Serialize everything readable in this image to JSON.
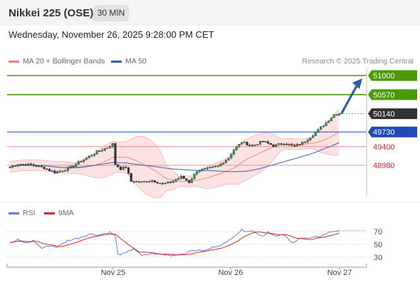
{
  "header": {
    "title": "Nikkei 225 (OSE)",
    "timeframe": "30 MIN",
    "datetime": "Wednesday, November 26, 2025 9:28:00 PM CET"
  },
  "legend": {
    "main": [
      {
        "label": "MA 20 + Bollinger Bands",
        "color": "#f08080"
      },
      {
        "label": "MA 50",
        "color": "#3b5fa6"
      }
    ],
    "credit": "Research © 2025 Trading Central",
    "rsi": [
      {
        "label": "RSI",
        "color": "#5b7fd8"
      },
      {
        "label": "9MA",
        "color": "#e02020"
      }
    ]
  },
  "chart_data": [
    {
      "type": "candlestick",
      "title": "Nikkei 225 (OSE)",
      "y_range": [
        48230,
        51150
      ],
      "levels": [
        {
          "value": 51000,
          "label": "51000",
          "style": "target",
          "color": "#4a9a06"
        },
        {
          "value": 50570,
          "label": "50570",
          "style": "target",
          "color": "#4a9a06"
        },
        {
          "value": 50140,
          "label": "50140",
          "style": "last",
          "color": "#333333"
        },
        {
          "value": 49730,
          "label": "49730",
          "style": "pivot",
          "color": "#1e4bb5"
        },
        {
          "value": 49400,
          "label": "49400",
          "style": "support",
          "color": "#d02828"
        },
        {
          "value": 48980,
          "label": "48980",
          "style": "support",
          "color": "#d02828"
        }
      ],
      "x_labels": [
        "Nov 25",
        "Nov 26",
        "Nov 27"
      ],
      "projection": {
        "from": 50140,
        "to": 51000,
        "color": "#2f5ea8"
      },
      "anchors": [
        [
          0,
          48940
        ],
        [
          3,
          49010
        ],
        [
          8,
          48990
        ],
        [
          13,
          48920
        ],
        [
          17,
          48820
        ],
        [
          22,
          48900
        ],
        [
          27,
          49080
        ],
        [
          33,
          49280
        ],
        [
          37,
          49380
        ],
        [
          39,
          49460
        ],
        [
          40,
          49000
        ],
        [
          42,
          48900
        ],
        [
          44,
          48940
        ],
        [
          46,
          48620
        ],
        [
          50,
          48600
        ],
        [
          54,
          48640
        ],
        [
          58,
          48560
        ],
        [
          61,
          48600
        ],
        [
          65,
          48720
        ],
        [
          68,
          48600
        ],
        [
          71,
          48860
        ],
        [
          75,
          48900
        ],
        [
          79,
          48960
        ],
        [
          83,
          49150
        ],
        [
          85,
          49330
        ],
        [
          88,
          49500
        ],
        [
          92,
          49420
        ],
        [
          96,
          49520
        ],
        [
          100,
          49420
        ],
        [
          104,
          49480
        ],
        [
          108,
          49400
        ],
        [
          112,
          49520
        ],
        [
          116,
          49720
        ],
        [
          120,
          49940
        ],
        [
          123,
          50120
        ],
        [
          125,
          50140
        ]
      ]
    },
    {
      "type": "line",
      "title": "RSI",
      "y_range": [
        20,
        82
      ],
      "y_ticks": [
        70,
        50,
        30
      ],
      "series": [
        {
          "name": "RSI",
          "color": "#5b7fd8"
        },
        {
          "name": "9MA",
          "color": "#e02020"
        }
      ],
      "rsi_anchors": [
        [
          0,
          52
        ],
        [
          3,
          57
        ],
        [
          6,
          52
        ],
        [
          9,
          56
        ],
        [
          12,
          44
        ],
        [
          15,
          48
        ],
        [
          18,
          46
        ],
        [
          22,
          56
        ],
        [
          26,
          60
        ],
        [
          30,
          66
        ],
        [
          34,
          65
        ],
        [
          38,
          69
        ],
        [
          40,
          63
        ],
        [
          41,
          34
        ],
        [
          44,
          36
        ],
        [
          47,
          44
        ],
        [
          50,
          32
        ],
        [
          54,
          36
        ],
        [
          58,
          34
        ],
        [
          62,
          33
        ],
        [
          66,
          36
        ],
        [
          70,
          41
        ],
        [
          74,
          40
        ],
        [
          78,
          47
        ],
        [
          82,
          52
        ],
        [
          84,
          60
        ],
        [
          86,
          66
        ],
        [
          88,
          72
        ],
        [
          92,
          71
        ],
        [
          96,
          63
        ],
        [
          98,
          70
        ],
        [
          101,
          62
        ],
        [
          104,
          65
        ],
        [
          107,
          52
        ],
        [
          110,
          60
        ],
        [
          114,
          59
        ],
        [
          118,
          63
        ],
        [
          122,
          70
        ],
        [
          125,
          72
        ]
      ]
    }
  ]
}
